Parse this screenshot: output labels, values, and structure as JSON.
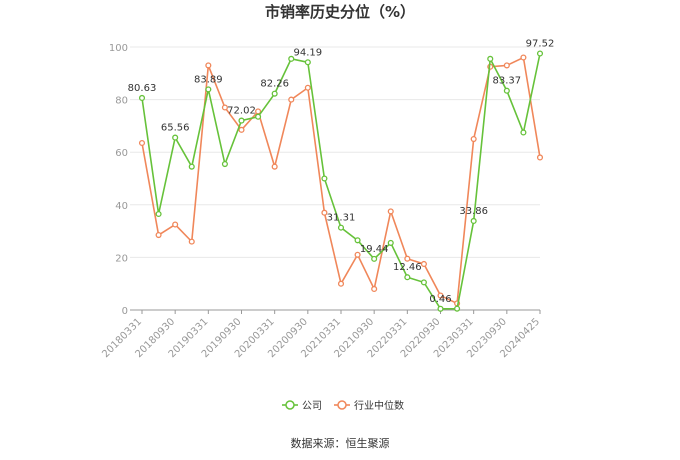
{
  "chart_data": {
    "type": "line",
    "title": "市销率历史分位（%）",
    "x": [
      "20180331",
      "20180630",
      "20180930",
      "20181231",
      "20190331",
      "20190630",
      "20190930",
      "20191231",
      "20200331",
      "20200630",
      "20200930",
      "20201231",
      "20210331",
      "20210630",
      "20210930",
      "20211231",
      "20220331",
      "20220630",
      "20220930",
      "20221231",
      "20230331",
      "20230630",
      "20230930",
      "20231231",
      "20240425"
    ],
    "x_tick_labels": [
      "20180331",
      "20180930",
      "20190331",
      "20190930",
      "20200331",
      "20200930",
      "20210331",
      "20210930",
      "20220331",
      "20220930",
      "20230331",
      "20230930",
      "20240425"
    ],
    "ylim": [
      0,
      100
    ],
    "y_ticks": [
      0,
      20,
      40,
      60,
      80,
      100
    ],
    "grid": true,
    "legend_position": "bottom",
    "series": [
      {
        "name": "公司",
        "color": "#66c23a",
        "values": [
          80.63,
          36.5,
          65.56,
          54.5,
          83.89,
          55.5,
          72.02,
          73.5,
          82.26,
          95.5,
          94.19,
          50,
          31.31,
          26.5,
          19.44,
          25.5,
          12.46,
          10.5,
          0.46,
          0.5,
          33.86,
          95.5,
          83.37,
          67.5,
          97.52
        ]
      },
      {
        "name": "行业中位数",
        "color": "#f0875a",
        "values": [
          63.5,
          28.5,
          32.5,
          26,
          93,
          77,
          68.5,
          75.5,
          54.5,
          80,
          84.5,
          37,
          10,
          21,
          8,
          37.5,
          19.5,
          17.5,
          5.5,
          2.5,
          65,
          92.5,
          93,
          96,
          58
        ]
      }
    ],
    "data_labels": [
      {
        "index": 0,
        "text": "80.63"
      },
      {
        "index": 2,
        "text": "65.56"
      },
      {
        "index": 4,
        "text": "83.89"
      },
      {
        "index": 6,
        "text": "72.02"
      },
      {
        "index": 8,
        "text": "82.26"
      },
      {
        "index": 10,
        "text": "94.19"
      },
      {
        "index": 12,
        "text": "31.31"
      },
      {
        "index": 14,
        "text": "19.44"
      },
      {
        "index": 16,
        "text": "12.46"
      },
      {
        "index": 18,
        "text": "0.46"
      },
      {
        "index": 20,
        "text": "33.86"
      },
      {
        "index": 22,
        "text": "83.37"
      },
      {
        "index": 24,
        "text": "97.52"
      }
    ],
    "source": "数据来源：恒生聚源"
  }
}
